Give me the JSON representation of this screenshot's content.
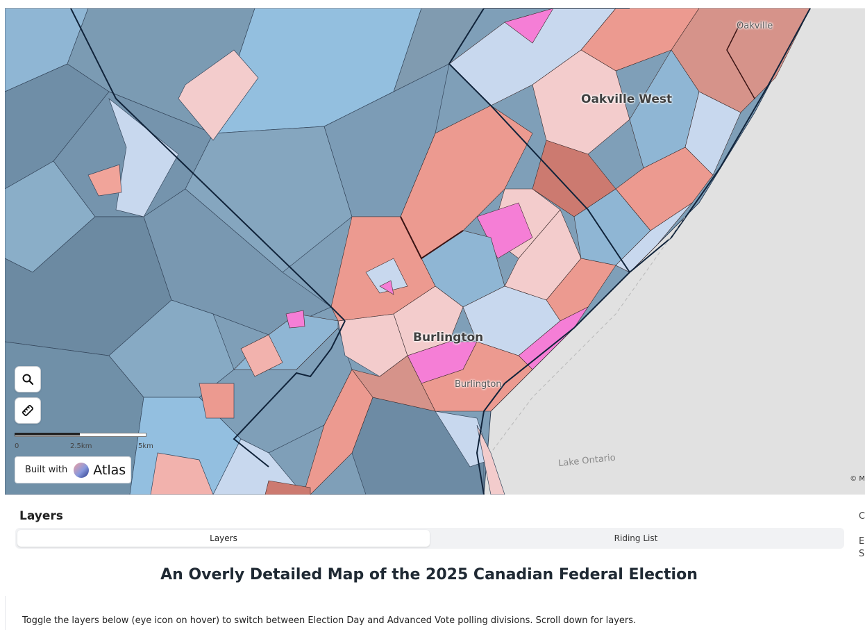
{
  "map": {
    "labels": {
      "oakville": "Oakville",
      "oakville_west": "Oakville West",
      "burlington_riding": "Burlington",
      "burlington_city": "Burlington",
      "lake": "Lake Ontario"
    },
    "controls": {
      "search_icon": "search-icon",
      "measure_icon": "ruler-icon"
    },
    "scale": {
      "ticks": [
        "0",
        "2.5km",
        "5km"
      ]
    },
    "badge": {
      "built_with": "Built with",
      "brand": "Atlas"
    },
    "attribution": "© M",
    "colors": {
      "lake": "#e1e1e1",
      "blue_dark": "#6f8ea7",
      "blue_mid": "#8fb6d4",
      "blue_light": "#c8d8ee",
      "red_light": "#f3cccc",
      "red_mid": "#ec9a90",
      "red_dark": "#cc7a70",
      "magenta": "#f57ed6"
    }
  },
  "panel": {
    "title": "Layers",
    "tabs": [
      {
        "label": "Layers",
        "active": true
      },
      {
        "label": "Riding List",
        "active": false
      }
    ],
    "main_title": "An Overly Detailed Map of the 2025 Canadian Federal Election",
    "description": "Toggle the layers below (eye icon on hover) to switch between Election Day and Advanced Vote polling divisions. Scroll down for layers.",
    "side_peek": [
      "C",
      "E",
      "S"
    ]
  }
}
